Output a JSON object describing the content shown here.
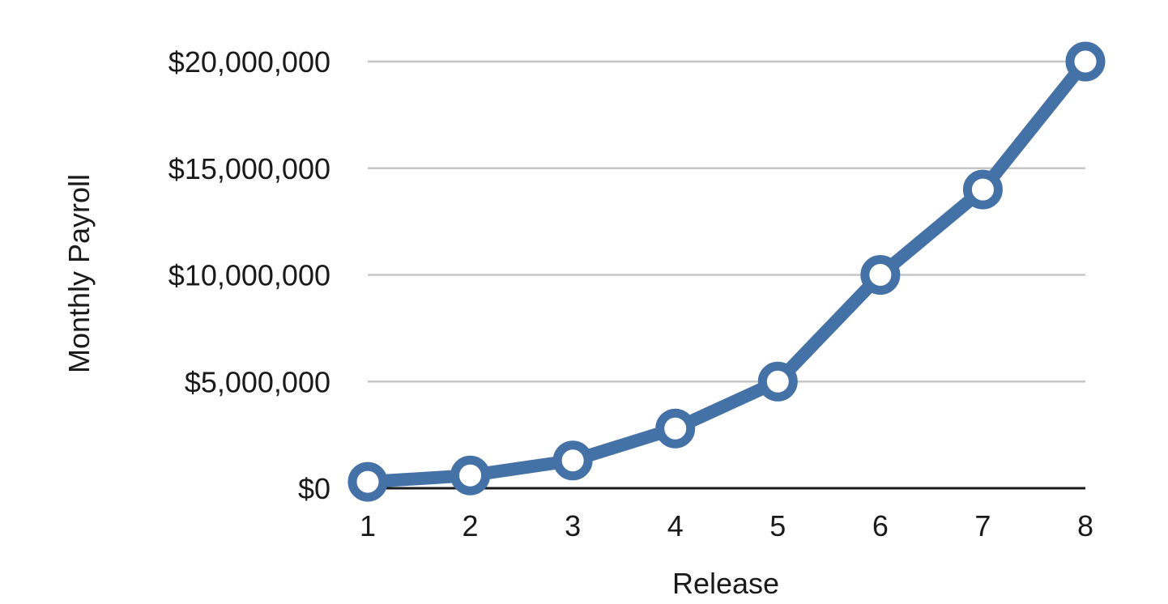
{
  "chart_data": {
    "type": "line",
    "xlabel": "Release",
    "ylabel": "Monthly Payroll",
    "categories": [
      "1",
      "2",
      "3",
      "4",
      "5",
      "6",
      "7",
      "8"
    ],
    "series": [
      {
        "values": [
          300000,
          600000,
          1300000,
          2800000,
          5000000,
          10000000,
          14000000,
          20000000
        ]
      }
    ],
    "ylim": [
      0,
      20000000
    ],
    "yticks": [
      0,
      5000000,
      10000000,
      15000000,
      20000000
    ],
    "ytick_labels": [
      "$0",
      "$5,000,000",
      "$10,000,000",
      "$15,000,000",
      "$20,000,000"
    ],
    "grid": "horizontal",
    "legend": "none",
    "colors": {
      "line": "#4472a6",
      "marker_fill": "#ffffff",
      "grid": "#c6c6c6",
      "axis": "#1a1a1a"
    }
  }
}
